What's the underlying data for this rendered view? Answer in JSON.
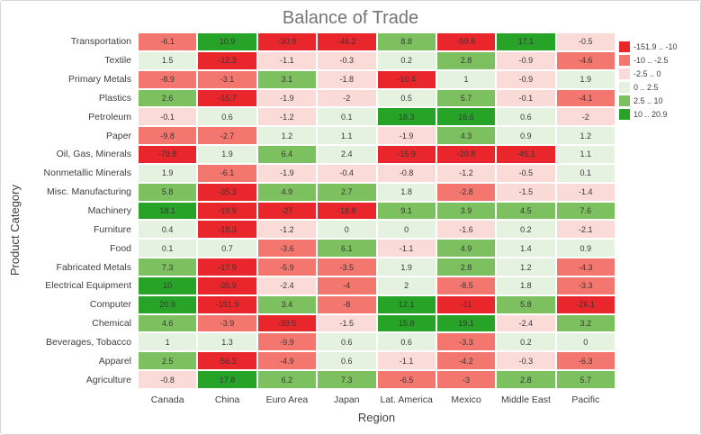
{
  "chart_data": {
    "type": "heatmap",
    "title": "Balance of Trade",
    "xlabel": "Region",
    "ylabel": "Product Category",
    "columns": [
      "Canada",
      "China",
      "Euro Area",
      "Japan",
      "Lat. America",
      "Mexico",
      "Middle East",
      "Pacific"
    ],
    "rows": [
      "Transportation",
      "Textile",
      "Primary Metals",
      "Plastics",
      "Petroleum",
      "Paper",
      "Oil, Gas, Minerals",
      "Nonmetallic Minerals",
      "Misc. Manufacturing",
      "Machinery",
      "Furniture",
      "Food",
      "Fabricated Metals",
      "Electrical Equipment",
      "Computer",
      "Chemical",
      "Beverages, Tobacco",
      "Apparel",
      "Agriculture"
    ],
    "values": [
      [
        -6.1,
        10.9,
        -30.9,
        -46.2,
        8.8,
        -59.5,
        17.1,
        -0.5
      ],
      [
        1.5,
        -12.3,
        -1.1,
        -0.3,
        0.2,
        2.8,
        -0.9,
        -4.6
      ],
      [
        -8.9,
        -3.1,
        3.1,
        -1.8,
        -10.4,
        1,
        -0.9,
        1.9
      ],
      [
        2.6,
        -15.7,
        -1.9,
        -2,
        0.5,
        5.7,
        -0.1,
        -4.1
      ],
      [
        -0.1,
        0.6,
        -1.2,
        0.1,
        18.3,
        16.6,
        0.6,
        -2
      ],
      [
        -9.8,
        -2.7,
        1.2,
        1.1,
        -1.9,
        4.3,
        0.9,
        1.2
      ],
      [
        -79.8,
        1.9,
        6.4,
        2.4,
        -15.9,
        -20.8,
        -45.1,
        1.1
      ],
      [
        1.9,
        -6.1,
        -1.9,
        -0.4,
        -0.8,
        -1.2,
        -0.5,
        0.1
      ],
      [
        5.8,
        -35.3,
        4.9,
        2.7,
        1.8,
        -2.8,
        -1.5,
        -1.4
      ],
      [
        18.1,
        -19.9,
        -27,
        -18.8,
        9.1,
        3.9,
        4.5,
        7.6
      ],
      [
        0.4,
        -18.3,
        -1.2,
        0,
        0,
        -1.6,
        0.2,
        -2.1
      ],
      [
        0.1,
        0.7,
        -3.6,
        6.1,
        -1.1,
        4.9,
        1.4,
        0.9
      ],
      [
        7.3,
        -17.9,
        -5.9,
        -3.5,
        1.9,
        2.8,
        1.2,
        -4.3
      ],
      [
        10,
        -35.9,
        -2.4,
        -4,
        2,
        -8.5,
        1.8,
        -3.3
      ],
      [
        20.9,
        -151.9,
        3.4,
        -8,
        12.1,
        -11,
        5.8,
        -26.1
      ],
      [
        4.6,
        -3.9,
        -39.5,
        -1.5,
        15.8,
        19.1,
        -2.4,
        3.2
      ],
      [
        1,
        1.3,
        -9.9,
        0.6,
        0.6,
        -3.3,
        0.2,
        0
      ],
      [
        2.5,
        -56.3,
        -4.9,
        0.6,
        -1.1,
        -4.2,
        -0.3,
        -6.3
      ],
      [
        -0.8,
        17.8,
        6.2,
        7.3,
        -6.5,
        -3,
        2.8,
        5.7
      ]
    ],
    "legend": {
      "position": "right-top",
      "bins": [
        {
          "label": "-151.9 .. -10",
          "color": "#e8262b"
        },
        {
          "label": "-10 .. -2.5",
          "color": "#f3766f"
        },
        {
          "label": "-2.5 .. 0",
          "color": "#fadbd8"
        },
        {
          "label": "0 .. 2.5",
          "color": "#e6f2e0"
        },
        {
          "label": "2.5 .. 10",
          "color": "#7dc05f"
        },
        {
          "label": "10 .. 20.9",
          "color": "#27a327"
        }
      ]
    },
    "grid": "white cell separators",
    "value_text_color": "#383838"
  }
}
